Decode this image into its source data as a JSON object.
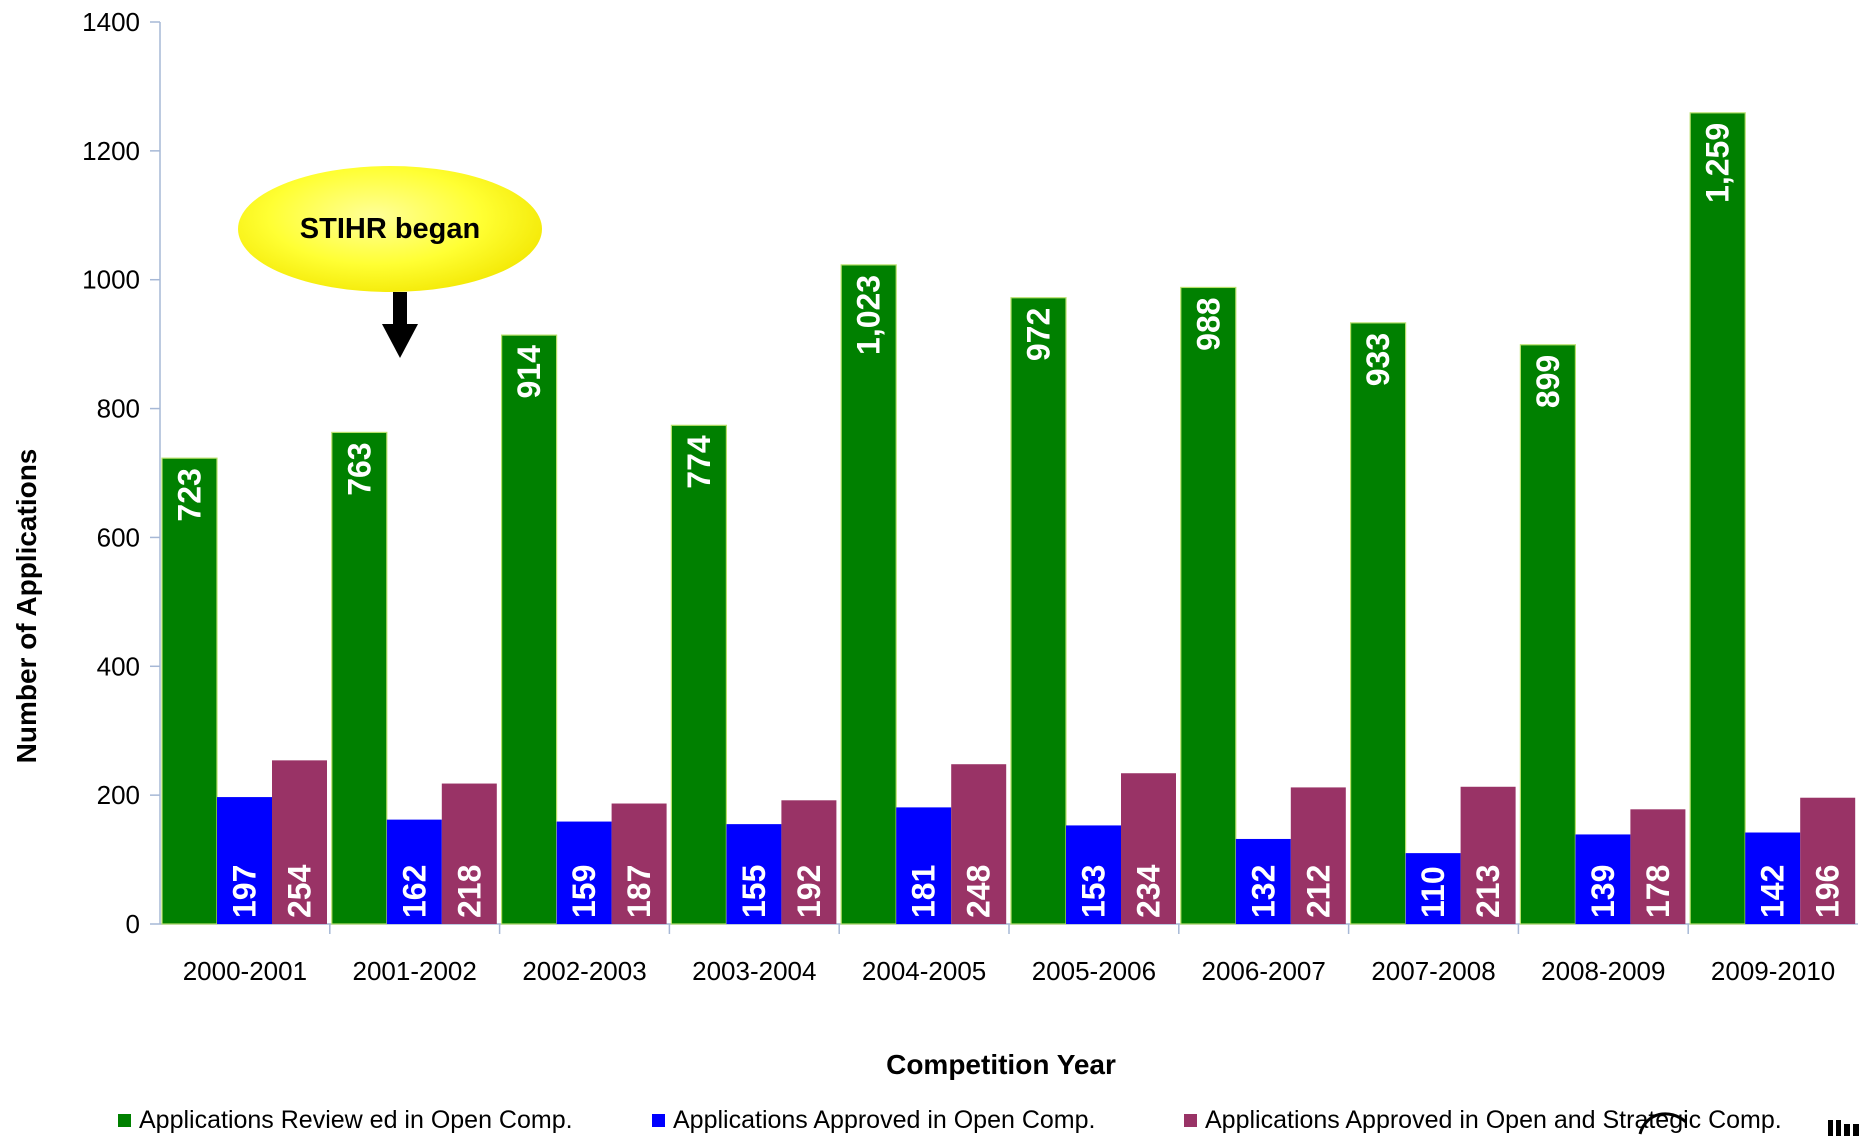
{
  "chart_data": {
    "type": "bar",
    "xlabel": "Competition Year",
    "ylabel": "Number of Applications",
    "ylim": [
      0,
      1400
    ],
    "yticks": [
      0,
      200,
      400,
      600,
      800,
      1000,
      1200,
      1400
    ],
    "grid": false,
    "legend_position": "bottom",
    "categories": [
      "2000-2001",
      "2001-2002",
      "2002-2003",
      "2003-2004",
      "2004-2005",
      "2005-2006",
      "2006-2007",
      "2007-2008",
      "2008-2009",
      "2009-2010"
    ],
    "series": [
      {
        "name": "Applications Review ed in Open Comp.",
        "color": "#008000",
        "values": [
          723,
          763,
          914,
          774,
          1023,
          972,
          988,
          933,
          899,
          1259
        ],
        "labels": [
          "723",
          "763",
          "914",
          "774",
          "1,023",
          "972",
          "988",
          "933",
          "899",
          "1,259"
        ]
      },
      {
        "name": "Applications Approved in Open Comp.",
        "color": "#0000ff",
        "values": [
          197,
          162,
          159,
          155,
          181,
          153,
          132,
          110,
          139,
          142
        ],
        "labels": [
          "197",
          "162",
          "159",
          "155",
          "181",
          "153",
          "132",
          "110",
          "139",
          "142"
        ]
      },
      {
        "name": "Applications Approved in Open and Strategic Comp.",
        "color": "#993366",
        "values": [
          254,
          218,
          187,
          192,
          248,
          234,
          212,
          213,
          178,
          196
        ],
        "labels": [
          "254",
          "218",
          "187",
          "192",
          "248",
          "234",
          "212",
          "213",
          "178",
          "196"
        ]
      }
    ],
    "annotations": [
      {
        "text": "STIHR began",
        "category": "2001-2002",
        "style": "yellow ellipse callout with down arrow"
      }
    ]
  }
}
